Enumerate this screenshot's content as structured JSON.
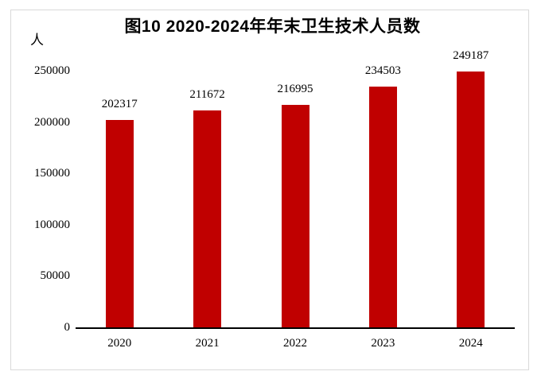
{
  "chart_data": {
    "type": "bar",
    "title": "图10 2020-2024年年末卫生技术人员数",
    "unit_label": "人",
    "categories": [
      "2020",
      "2021",
      "2022",
      "2023",
      "2024"
    ],
    "values": [
      202317,
      211672,
      216995,
      234503,
      249187
    ],
    "data_labels": [
      "202317",
      "211672",
      "216995",
      "234503",
      "249187"
    ],
    "y_ticks": [
      0,
      50000,
      100000,
      150000,
      200000,
      250000
    ],
    "ylim": [
      0,
      250000
    ],
    "xlabel": "",
    "ylabel": "人",
    "grid": false,
    "legend_position": "none",
    "bar_color": "#c00000",
    "axis_color": "#000000",
    "frame_border_color": "#d9d9d9",
    "background_color": "#ffffff"
  }
}
